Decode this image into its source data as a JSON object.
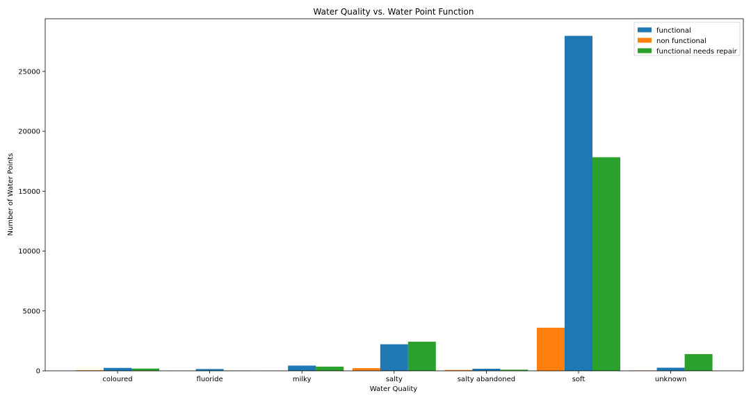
{
  "chart_data": {
    "type": "bar",
    "title": "Water Quality vs. Water Point Function",
    "xlabel": "Water Quality",
    "ylabel": "Number of Water Points",
    "categories": [
      "coloured",
      "fluoride",
      "milky",
      "salty",
      "salty abandoned",
      "soft",
      "unknown"
    ],
    "series": [
      {
        "name": "functional",
        "color": "#1f77b4",
        "values": [
          246,
          151,
          438,
          2220,
          174,
          27974,
          264
        ]
      },
      {
        "name": "non functional",
        "color": "#ff7f0e",
        "values": [
          54,
          13,
          14,
          225,
          72,
          3602,
          35
        ]
      },
      {
        "name": "functional needs repair",
        "color": "#2ca02c",
        "values": [
          190,
          29,
          352,
          2430,
          95,
          17835,
          1399
        ]
      }
    ],
    "series_order_in_group": [
      "non functional",
      "functional",
      "functional needs repair"
    ],
    "ylim": [
      0,
      29400
    ],
    "yticks": [
      0,
      5000,
      10000,
      15000,
      20000,
      25000
    ],
    "legend_position": "upper-right",
    "grid": false
  }
}
